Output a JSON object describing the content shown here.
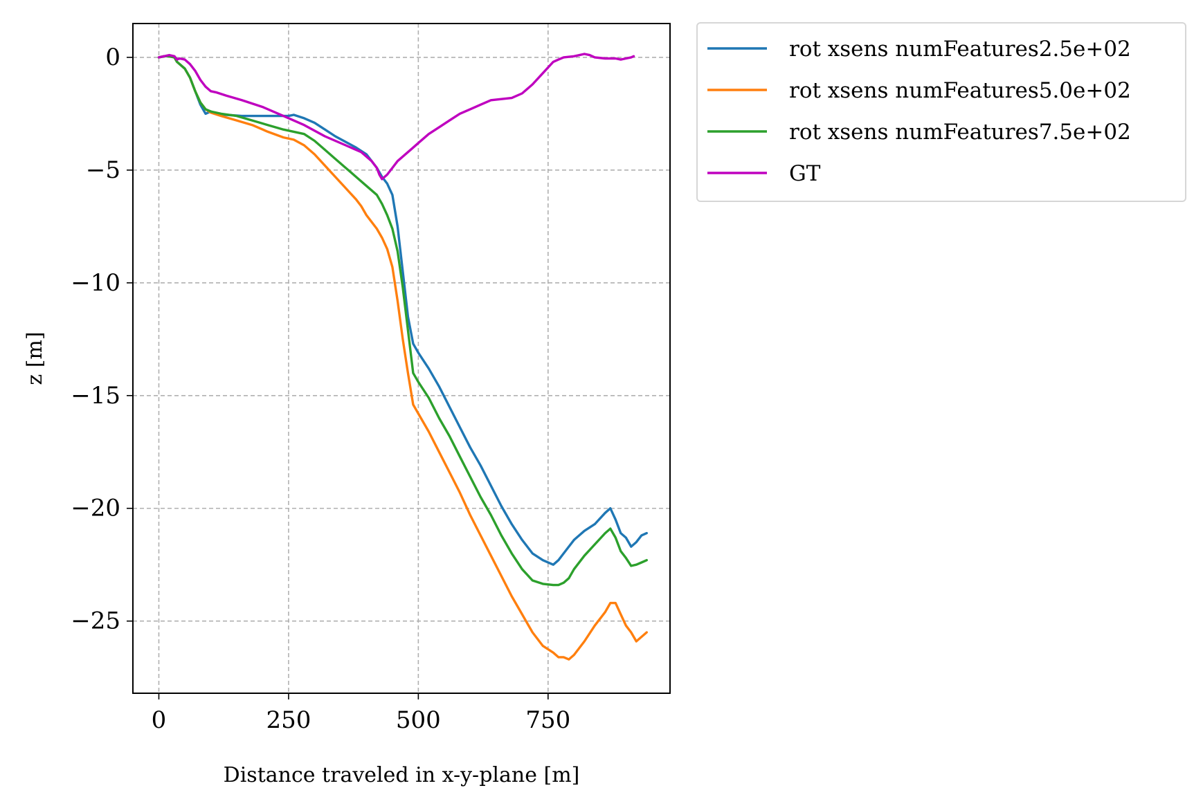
{
  "chart_data": {
    "type": "line",
    "title": "",
    "xlabel": "Distance traveled in x-y-plane [m]",
    "ylabel": "z [m]",
    "xlim": [
      -50,
      985
    ],
    "ylim": [
      -28.2,
      1.5
    ],
    "xticks": [
      0,
      250,
      500,
      750
    ],
    "xtick_labels": [
      "0",
      "250",
      "500",
      "750"
    ],
    "yticks": [
      0,
      -5,
      -10,
      -15,
      -20,
      -25
    ],
    "ytick_labels": [
      "0",
      "−5",
      "−10",
      "−15",
      "−20",
      "−25"
    ],
    "grid": true,
    "legend_position": "outside-top-right",
    "series": [
      {
        "name": "rot xsens numFeatures2.5e+02",
        "color": "#1f77b4",
        "x": [
          0,
          10,
          20,
          30,
          35,
          50,
          60,
          70,
          80,
          90,
          100,
          110,
          130,
          160,
          200,
          250,
          260,
          280,
          300,
          320,
          340,
          360,
          380,
          400,
          410,
          420,
          430,
          440,
          450,
          460,
          470,
          480,
          490,
          500,
          520,
          540,
          560,
          580,
          600,
          620,
          640,
          660,
          680,
          700,
          720,
          740,
          760,
          770,
          780,
          790,
          800,
          820,
          840,
          860,
          870,
          880,
          890,
          900,
          910,
          920,
          930,
          940
        ],
        "y": [
          0,
          0.05,
          0.05,
          0,
          -0.2,
          -0.5,
          -0.9,
          -1.5,
          -2.1,
          -2.5,
          -2.4,
          -2.5,
          -2.55,
          -2.6,
          -2.6,
          -2.6,
          -2.55,
          -2.7,
          -2.9,
          -3.2,
          -3.5,
          -3.75,
          -4.0,
          -4.3,
          -4.6,
          -4.9,
          -5.3,
          -5.6,
          -6.1,
          -7.5,
          -9.5,
          -11.5,
          -12.7,
          -13.1,
          -13.8,
          -14.6,
          -15.5,
          -16.4,
          -17.3,
          -18.1,
          -19.0,
          -19.9,
          -20.7,
          -21.4,
          -22.0,
          -22.3,
          -22.5,
          -22.3,
          -22.0,
          -21.7,
          -21.4,
          -21.0,
          -20.7,
          -20.2,
          -20.0,
          -20.5,
          -21.1,
          -21.3,
          -21.7,
          -21.5,
          -21.2,
          -21.1
        ]
      },
      {
        "name": "rot xsens numFeatures5.0e+02",
        "color": "#ff7f0e",
        "x": [
          0,
          10,
          20,
          30,
          35,
          50,
          60,
          70,
          80,
          90,
          100,
          120,
          150,
          180,
          210,
          240,
          260,
          280,
          300,
          320,
          340,
          360,
          380,
          390,
          400,
          410,
          420,
          430,
          440,
          450,
          460,
          470,
          480,
          490,
          500,
          520,
          540,
          560,
          580,
          600,
          620,
          640,
          660,
          680,
          700,
          720,
          740,
          760,
          770,
          780,
          790,
          800,
          820,
          840,
          860,
          870,
          880,
          890,
          900,
          910,
          920,
          930,
          940
        ],
        "y": [
          0,
          0.05,
          0.05,
          0,
          -0.2,
          -0.5,
          -0.9,
          -1.5,
          -2.0,
          -2.3,
          -2.45,
          -2.6,
          -2.8,
          -3.0,
          -3.3,
          -3.55,
          -3.65,
          -3.9,
          -4.3,
          -4.8,
          -5.3,
          -5.8,
          -6.3,
          -6.6,
          -7.0,
          -7.3,
          -7.6,
          -8.0,
          -8.5,
          -9.3,
          -10.8,
          -12.5,
          -14.0,
          -15.4,
          -15.8,
          -16.6,
          -17.5,
          -18.4,
          -19.3,
          -20.3,
          -21.2,
          -22.1,
          -23.0,
          -23.9,
          -24.7,
          -25.5,
          -26.1,
          -26.4,
          -26.6,
          -26.6,
          -26.7,
          -26.5,
          -25.9,
          -25.2,
          -24.6,
          -24.2,
          -24.2,
          -24.7,
          -25.2,
          -25.5,
          -25.9,
          -25.7,
          -25.5
        ]
      },
      {
        "name": "rot xsens numFeatures7.5e+02",
        "color": "#2ca02c",
        "x": [
          0,
          10,
          20,
          30,
          35,
          50,
          60,
          70,
          80,
          90,
          100,
          120,
          150,
          180,
          210,
          240,
          260,
          280,
          300,
          320,
          340,
          360,
          380,
          400,
          410,
          420,
          430,
          440,
          450,
          460,
          470,
          480,
          490,
          500,
          520,
          540,
          560,
          580,
          600,
          620,
          640,
          660,
          680,
          700,
          720,
          740,
          760,
          770,
          780,
          790,
          800,
          820,
          840,
          860,
          870,
          880,
          890,
          900,
          910,
          920,
          930,
          940
        ],
        "y": [
          0,
          0.05,
          0.05,
          0,
          -0.2,
          -0.5,
          -0.9,
          -1.5,
          -2.0,
          -2.3,
          -2.4,
          -2.5,
          -2.6,
          -2.8,
          -3.0,
          -3.2,
          -3.3,
          -3.4,
          -3.7,
          -4.1,
          -4.5,
          -4.9,
          -5.3,
          -5.7,
          -5.9,
          -6.1,
          -6.5,
          -7.0,
          -7.6,
          -8.6,
          -10.2,
          -12.1,
          -14.0,
          -14.4,
          -15.1,
          -16.0,
          -16.8,
          -17.7,
          -18.6,
          -19.5,
          -20.3,
          -21.2,
          -22.0,
          -22.7,
          -23.2,
          -23.35,
          -23.4,
          -23.4,
          -23.3,
          -23.1,
          -22.7,
          -22.1,
          -21.6,
          -21.1,
          -20.9,
          -21.3,
          -21.9,
          -22.2,
          -22.55,
          -22.5,
          -22.4,
          -22.3
        ]
      },
      {
        "name": "GT",
        "color": "#bf00bf",
        "x": [
          0,
          10,
          20,
          30,
          35,
          40,
          50,
          60,
          70,
          80,
          90,
          100,
          110,
          130,
          160,
          200,
          240,
          280,
          320,
          360,
          390,
          400,
          410,
          420,
          425,
          430,
          440,
          450,
          460,
          470,
          480,
          490,
          500,
          520,
          540,
          560,
          580,
          600,
          620,
          640,
          660,
          680,
          700,
          720,
          740,
          760,
          770,
          780,
          800,
          820,
          830,
          840,
          860,
          880,
          890,
          900,
          910,
          915
        ],
        "y": [
          0,
          0.05,
          0.1,
          0.05,
          -0.1,
          -0.05,
          -0.1,
          -0.3,
          -0.6,
          -1.0,
          -1.3,
          -1.5,
          -1.55,
          -1.7,
          -1.9,
          -2.2,
          -2.6,
          -3.0,
          -3.5,
          -3.9,
          -4.2,
          -4.4,
          -4.6,
          -4.9,
          -5.2,
          -5.4,
          -5.2,
          -4.9,
          -4.6,
          -4.4,
          -4.2,
          -4.0,
          -3.8,
          -3.4,
          -3.1,
          -2.8,
          -2.5,
          -2.3,
          -2.1,
          -1.9,
          -1.85,
          -1.8,
          -1.6,
          -1.2,
          -0.7,
          -0.2,
          -0.1,
          0.0,
          0.05,
          0.15,
          0.1,
          0.0,
          -0.05,
          -0.05,
          -0.1,
          -0.05,
          0.0,
          0.05
        ]
      }
    ]
  }
}
